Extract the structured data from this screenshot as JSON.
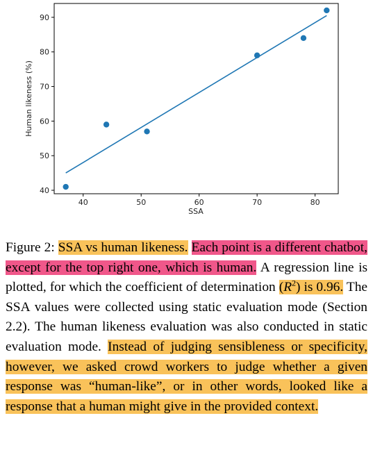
{
  "figure": {
    "chart_data": {
      "type": "scatter",
      "xlabel": "SSA",
      "ylabel": "Human likeness (%)",
      "xlim": [
        35,
        84
      ],
      "ylim": [
        39,
        94
      ],
      "xticks": [
        40,
        50,
        60,
        70,
        80
      ],
      "yticks": [
        40,
        50,
        60,
        70,
        80,
        90
      ],
      "points": [
        {
          "x": 37,
          "y": 41
        },
        {
          "x": 44,
          "y": 59
        },
        {
          "x": 51,
          "y": 57
        },
        {
          "x": 70,
          "y": 79
        },
        {
          "x": 78,
          "y": 84
        },
        {
          "x": 82,
          "y": 92
        }
      ],
      "regression_line": [
        {
          "x": 37,
          "y": 45
        },
        {
          "x": 82,
          "y": 90.5
        }
      ],
      "colors": {
        "points": "#1f77b4",
        "line": "#1f77b4"
      },
      "grid": false
    },
    "caption": {
      "label": "Figure 2:",
      "highlight1": "SSA vs human likeness.",
      "highlight2": "Each point is a different chatbot, except for the top right one, which is human.",
      "text1": "A regression line is plotted, for which the coefficient of determination",
      "highlight3_pre": "(",
      "r2_var": "R",
      "r2_exp": "2",
      "highlight3_post": ") is 0.96.",
      "text2": "The SSA values were collected using static evaluation mode (Section 2.2). The human likeness evaluation was also conducted in static evaluation mode.",
      "highlight4": "Instead of judging sensibleness or specificity, however, we asked crowd workers to judge whether a given response was “human-like”, or in other words, looked like a response that a human might give in the provided context."
    },
    "highlight_colors": {
      "orange": "#f9c25a",
      "pink": "#f0578a"
    }
  }
}
